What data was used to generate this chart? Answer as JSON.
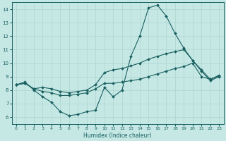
{
  "xlabel": "Humidex (Indice chaleur)",
  "xlim": [
    -0.5,
    23.5
  ],
  "ylim": [
    5.5,
    14.5
  ],
  "yticks": [
    6,
    7,
    8,
    9,
    10,
    11,
    12,
    13,
    14
  ],
  "xticks": [
    0,
    1,
    2,
    3,
    4,
    5,
    6,
    7,
    8,
    9,
    10,
    11,
    12,
    13,
    14,
    15,
    16,
    17,
    18,
    19,
    20,
    21,
    22,
    23
  ],
  "background_color": "#c5e8e5",
  "grid_color": "#aed4d0",
  "line_color": "#1a6060",
  "series": [
    {
      "x": [
        0,
        1,
        2,
        3,
        4,
        5,
        6,
        7,
        8,
        9,
        10,
        11,
        12,
        13,
        14,
        15,
        16,
        17,
        18,
        19,
        20,
        21,
        22,
        23
      ],
      "y": [
        8.4,
        8.6,
        8.0,
        7.5,
        7.1,
        6.4,
        6.1,
        6.2,
        6.4,
        6.5,
        8.2,
        7.5,
        8.0,
        10.5,
        12.0,
        14.1,
        14.3,
        13.5,
        12.2,
        11.1,
        10.2,
        9.4,
        8.7,
        9.0
      ]
    },
    {
      "x": [
        0,
        1,
        2,
        3,
        4,
        5,
        6,
        7,
        8,
        9,
        10,
        11,
        12,
        13,
        14,
        15,
        16,
        17,
        18,
        19,
        20,
        21,
        22,
        23
      ],
      "y": [
        8.4,
        8.5,
        8.1,
        8.2,
        8.1,
        7.9,
        7.8,
        7.9,
        8.0,
        8.4,
        9.3,
        9.5,
        9.6,
        9.8,
        10.0,
        10.3,
        10.5,
        10.7,
        10.85,
        11.0,
        10.2,
        9.5,
        8.8,
        9.1
      ]
    },
    {
      "x": [
        0,
        1,
        2,
        3,
        4,
        5,
        6,
        7,
        8,
        9,
        10,
        11,
        12,
        13,
        14,
        15,
        16,
        17,
        18,
        19,
        20,
        21,
        22,
        23
      ],
      "y": [
        8.4,
        8.5,
        8.1,
        7.9,
        7.8,
        7.6,
        7.6,
        7.7,
        7.8,
        8.1,
        8.5,
        8.5,
        8.6,
        8.7,
        8.8,
        9.0,
        9.2,
        9.4,
        9.6,
        9.75,
        10.0,
        9.0,
        8.8,
        9.05
      ]
    }
  ]
}
